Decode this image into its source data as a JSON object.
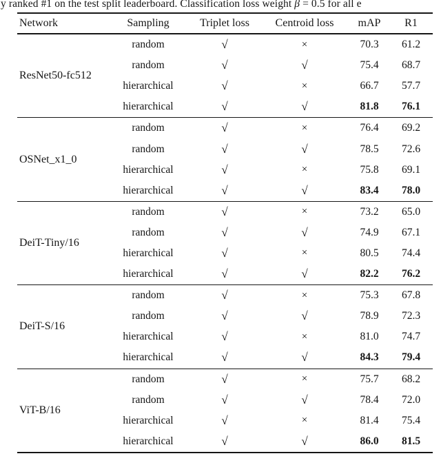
{
  "caption": {
    "part1": "y ranked #1 on the test split leaderboard. Classification loss weight ",
    "beta": "β",
    "part2": " = 0.5 for all e"
  },
  "table": {
    "headers": [
      "Network",
      "Sampling",
      "Triplet loss",
      "Centroid loss",
      "mAP",
      "R1"
    ],
    "check_mark": "√",
    "cross_mark": "×",
    "groups": [
      {
        "network": "ResNet50-fc512",
        "rows": [
          {
            "sampling": "random",
            "triplet": "√",
            "centroid": "×",
            "map": "70.3",
            "r1": "61.2",
            "bold": false
          },
          {
            "sampling": "random",
            "triplet": "√",
            "centroid": "√",
            "map": "75.4",
            "r1": "68.7",
            "bold": false
          },
          {
            "sampling": "hierarchical",
            "triplet": "√",
            "centroid": "×",
            "map": "66.7",
            "r1": "57.7",
            "bold": false
          },
          {
            "sampling": "hierarchical",
            "triplet": "√",
            "centroid": "√",
            "map": "81.8",
            "r1": "76.1",
            "bold": true
          }
        ]
      },
      {
        "network": "OSNet_x1_0",
        "rows": [
          {
            "sampling": "random",
            "triplet": "√",
            "centroid": "×",
            "map": "76.4",
            "r1": "69.2",
            "bold": false
          },
          {
            "sampling": "random",
            "triplet": "√",
            "centroid": "√",
            "map": "78.5",
            "r1": "72.6",
            "bold": false
          },
          {
            "sampling": "hierarchical",
            "triplet": "√",
            "centroid": "×",
            "map": "75.8",
            "r1": "69.1",
            "bold": false
          },
          {
            "sampling": "hierarchical",
            "triplet": "√",
            "centroid": "√",
            "map": "83.4",
            "r1": "78.0",
            "bold": true
          }
        ]
      },
      {
        "network": "DeiT-Tiny/16",
        "rows": [
          {
            "sampling": "random",
            "triplet": "√",
            "centroid": "×",
            "map": "73.2",
            "r1": "65.0",
            "bold": false
          },
          {
            "sampling": "random",
            "triplet": "√",
            "centroid": "√",
            "map": "74.9",
            "r1": "67.1",
            "bold": false
          },
          {
            "sampling": "hierarchical",
            "triplet": "√",
            "centroid": "×",
            "map": "80.5",
            "r1": "74.4",
            "bold": false
          },
          {
            "sampling": "hierarchical",
            "triplet": "√",
            "centroid": "√",
            "map": "82.2",
            "r1": "76.2",
            "bold": true
          }
        ]
      },
      {
        "network": "DeiT-S/16",
        "rows": [
          {
            "sampling": "random",
            "triplet": "√",
            "centroid": "×",
            "map": "75.3",
            "r1": "67.8",
            "bold": false
          },
          {
            "sampling": "random",
            "triplet": "√",
            "centroid": "√",
            "map": "78.9",
            "r1": "72.3",
            "bold": false
          },
          {
            "sampling": "hierarchical",
            "triplet": "√",
            "centroid": "×",
            "map": "81.0",
            "r1": "74.7",
            "bold": false
          },
          {
            "sampling": "hierarchical",
            "triplet": "√",
            "centroid": "√",
            "map": "84.3",
            "r1": "79.4",
            "bold": true
          }
        ]
      },
      {
        "network": "ViT-B/16",
        "rows": [
          {
            "sampling": "random",
            "triplet": "√",
            "centroid": "×",
            "map": "75.7",
            "r1": "68.2",
            "bold": false
          },
          {
            "sampling": "random",
            "triplet": "√",
            "centroid": "√",
            "map": "78.4",
            "r1": "72.0",
            "bold": false
          },
          {
            "sampling": "hierarchical",
            "triplet": "√",
            "centroid": "×",
            "map": "81.4",
            "r1": "75.4",
            "bold": false
          },
          {
            "sampling": "hierarchical",
            "triplet": "√",
            "centroid": "√",
            "map": "86.0",
            "r1": "81.5",
            "bold": true
          }
        ]
      }
    ]
  }
}
